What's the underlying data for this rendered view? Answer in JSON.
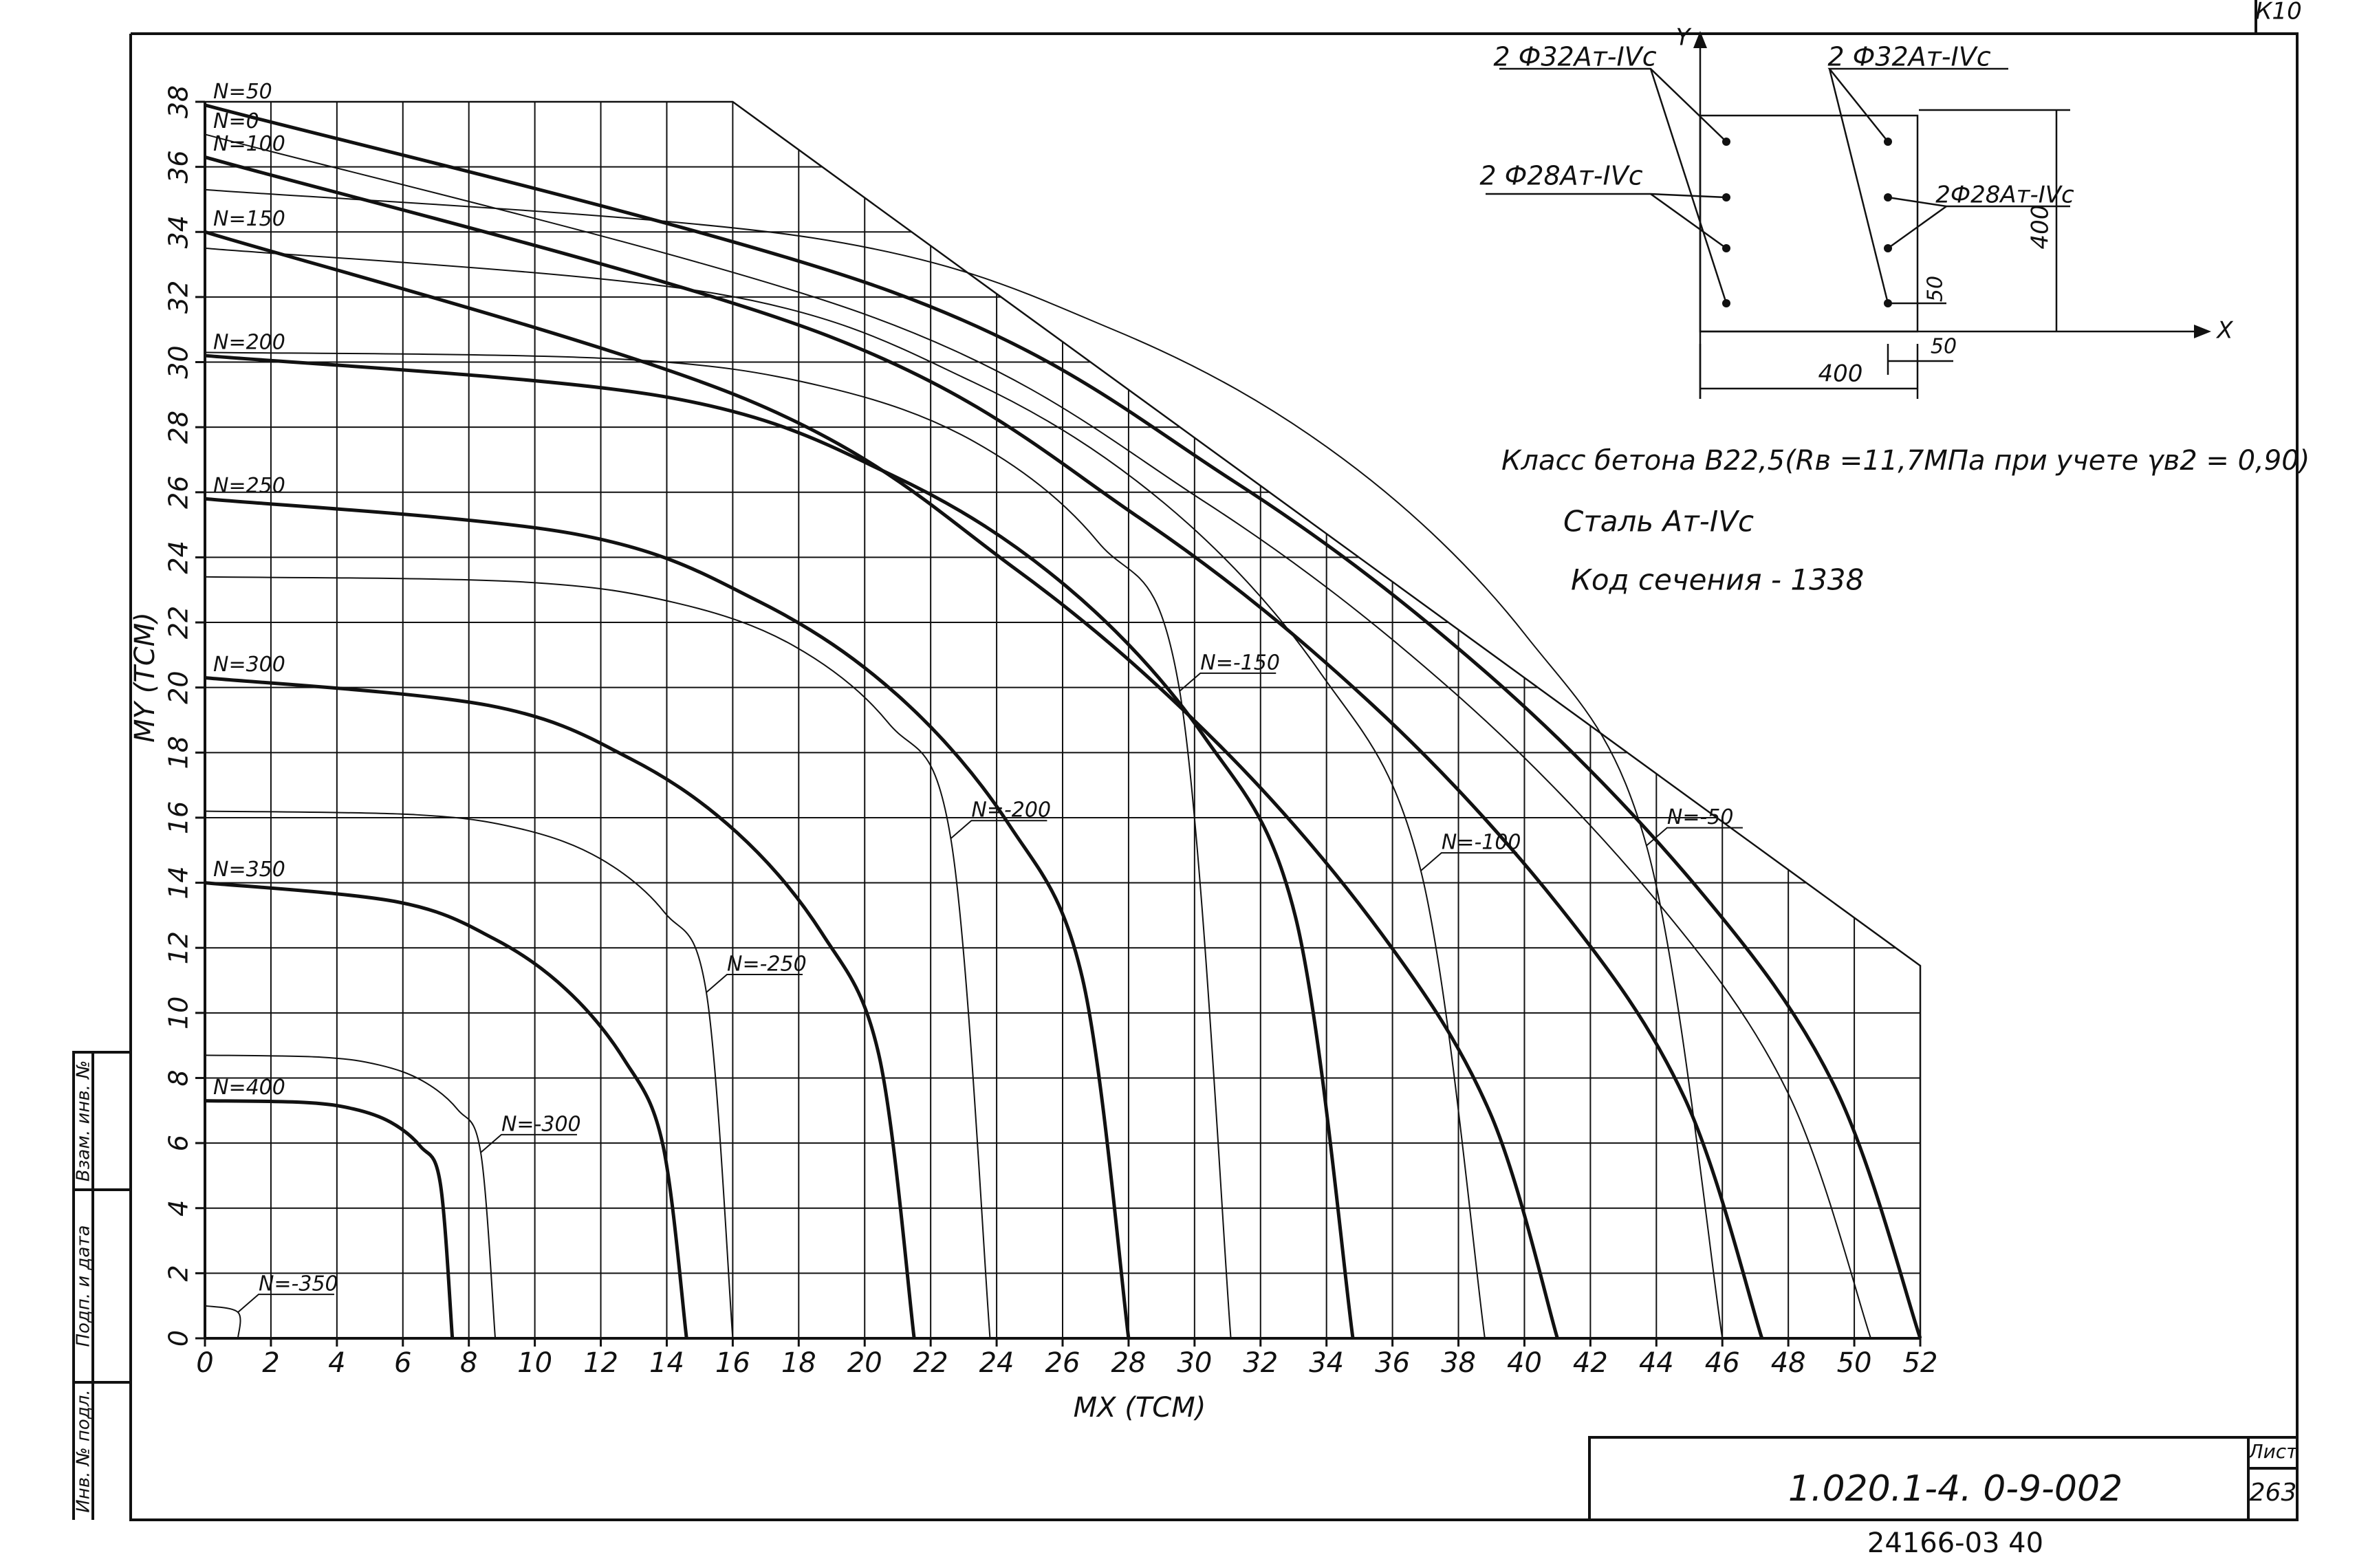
{
  "chart_data": {
    "type": "line",
    "x_label": "MX (TCM)",
    "y_label": "MY (TCM)",
    "xlim": [
      0,
      52
    ],
    "ylim": [
      0,
      38
    ],
    "xticks": [
      0,
      2,
      4,
      6,
      8,
      10,
      12,
      14,
      16,
      18,
      20,
      22,
      24,
      26,
      28,
      30,
      32,
      34,
      36,
      38,
      40,
      42,
      44,
      46,
      48,
      50,
      52
    ],
    "yticks": [
      0,
      2,
      4,
      6,
      8,
      10,
      12,
      14,
      16,
      18,
      20,
      22,
      24,
      26,
      28,
      30,
      32,
      34,
      36,
      38
    ],
    "grid": true,
    "limit": {
      "x": [
        0,
        16,
        52,
        52
      ],
      "y": [
        38,
        38,
        11.45,
        0
      ]
    },
    "series": [
      {
        "name": "N=0",
        "color": "#111",
        "line_width": 2,
        "x": [
          0,
          20.2,
          30.3,
          37.88,
          43.94,
          47.98,
          50.5
        ],
        "y": [
          37,
          31.4,
          25.71,
          19.84,
          13.52,
          7.56,
          0
        ]
      },
      {
        "name": "N=50",
        "color": "#111",
        "line_width": 5,
        "x": [
          0,
          20.8,
          31.2,
          39,
          45.24,
          49.4,
          52
        ],
        "y": [
          37.9,
          32.17,
          26.33,
          20.32,
          13.85,
          7.75,
          0
        ]
      },
      {
        "name": "N=100",
        "color": "#111",
        "line_width": 5,
        "x": [
          0,
          18.88,
          28.32,
          35.4,
          41.06,
          44.84,
          47.2
        ],
        "y": [
          36.3,
          30.81,
          25.22,
          19.46,
          13.27,
          7.42,
          0
        ]
      },
      {
        "name": "N=150",
        "color": "#111",
        "line_width": 5,
        "x": [
          0,
          16.4,
          24.6,
          30.75,
          35.67,
          38.95,
          41
        ],
        "y": [
          34,
          28.86,
          23.62,
          18.23,
          12.43,
          6.95,
          0
        ]
      },
      {
        "name": "N=200",
        "color": "#111",
        "line_width": 5,
        "x": [
          0,
          13.92,
          20.88,
          26.1,
          30.28,
          33.06,
          34.8
        ],
        "y": [
          30.2,
          28.94,
          26.5,
          23.12,
          18.51,
          12.95,
          0
        ]
      },
      {
        "name": "N=250",
        "color": "#111",
        "line_width": 5,
        "x": [
          0,
          11.2,
          16.8,
          21,
          24.36,
          26.6,
          28
        ],
        "y": [
          25.8,
          24.72,
          22.64,
          19.76,
          15.81,
          11.07,
          0
        ]
      },
      {
        "name": "N=300",
        "color": "#111",
        "line_width": 5,
        "x": [
          0,
          8.6,
          12.9,
          16.13,
          18.71,
          20.43,
          21.5
        ],
        "y": [
          20.3,
          19.45,
          17.81,
          15.54,
          12.44,
          8.71,
          0
        ]
      },
      {
        "name": "N=350",
        "color": "#111",
        "line_width": 5,
        "x": [
          0,
          5.84,
          8.76,
          10.95,
          12.7,
          13.87,
          14.6
        ],
        "y": [
          14,
          13.41,
          12.28,
          10.72,
          8.58,
          6,
          0
        ]
      },
      {
        "name": "N=400",
        "color": "#111",
        "line_width": 5,
        "x": [
          0,
          3,
          4.5,
          5.63,
          6.53,
          7.13,
          7.5
        ],
        "y": [
          7.3,
          7.25,
          7.05,
          6.64,
          5.9,
          4.79,
          0
        ]
      },
      {
        "name": "N=-50",
        "color": "#111",
        "line_width": 2,
        "x": [
          0,
          18.4,
          27.6,
          34.5,
          40.02,
          43.7,
          46
        ],
        "y": [
          35.3,
          33.82,
          30.97,
          27.03,
          21.63,
          15.14,
          0
        ]
      },
      {
        "name": "N=-100",
        "color": "#111",
        "line_width": 2,
        "x": [
          0,
          15.52,
          23.28,
          29.1,
          33.76,
          36.86,
          38.8
        ],
        "y": [
          33.5,
          32.1,
          29.39,
          25.65,
          20.53,
          14.37,
          0
        ]
      },
      {
        "name": "N=-150",
        "color": "#111",
        "line_width": 2,
        "x": [
          0,
          12.44,
          18.66,
          23.33,
          27.06,
          29.55,
          31.1
        ],
        "y": [
          30.3,
          30.1,
          29.27,
          27.55,
          24.49,
          19.89,
          0
        ]
      },
      {
        "name": "N=-200",
        "color": "#111",
        "line_width": 2,
        "x": [
          0,
          9.52,
          14.28,
          17.85,
          20.71,
          22.61,
          23.8
        ],
        "y": [
          23.4,
          23.25,
          22.6,
          21.28,
          18.92,
          15.36,
          0
        ]
      },
      {
        "name": "N=-250",
        "color": "#111",
        "line_width": 2,
        "x": [
          0,
          6.4,
          9.6,
          12,
          13.92,
          15.2,
          16
        ],
        "y": [
          16.2,
          16.09,
          15.65,
          14.73,
          13.1,
          10.63,
          0
        ]
      },
      {
        "name": "N=-300",
        "color": "#111",
        "line_width": 2,
        "x": [
          0,
          3.52,
          5.28,
          6.6,
          7.66,
          8.36,
          8.8
        ],
        "y": [
          8.7,
          8.64,
          8.4,
          7.91,
          7.03,
          5.71,
          0
        ]
      },
      {
        "name": "N=-350",
        "color": "#111",
        "line_width": 2,
        "x": [
          0,
          1,
          1
        ],
        "y": [
          1,
          0.8,
          0
        ]
      }
    ],
    "section": {
      "rebar_top_left": "2 Ф32Ат-IVс",
      "rebar_top_right": "2 Ф32Ат-IVс",
      "rebar_mid_left": "2 Ф28Ат-IVс",
      "rebar_mid_right": "2Ф28Ат-IVс",
      "height": "400",
      "width": "400",
      "cover_y": "50",
      "cover_x": "50",
      "axis_y": "Y",
      "axis_x": "X"
    },
    "notes": [
      "Класс бетона В22,5(Rв =11,7МПа при учете γв2 = 0,90)",
      "Сталь Ат-IVс",
      "Код сечения - 1338"
    ]
  },
  "stamp": {
    "code": "1.020.1-4. 0-9-002",
    "sheet_label": "Лист",
    "sheet": "263",
    "archive": "24166-03 40",
    "corner": "К10",
    "side": [
      "Инв. № подл.",
      "Подп. и дата",
      "Взам. инв. №"
    ]
  }
}
